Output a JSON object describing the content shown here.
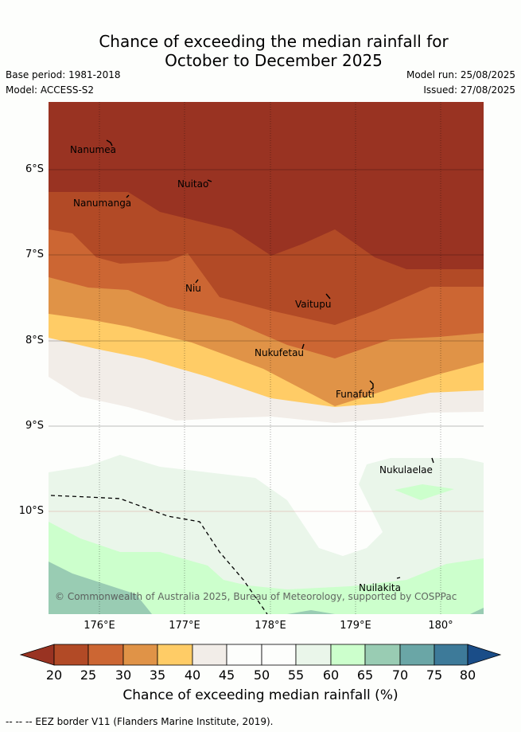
{
  "title": "Chance of exceeding the median rainfall for\nOctober to December 2025",
  "info": {
    "base_period": "Base period: 1981-2018",
    "model": "Model: ACCESS-S2",
    "model_run": "Model run: 25/08/2025",
    "issued": "Issued: 27/08/2025"
  },
  "map": {
    "copyright": "© Commonwealth of Australia 2025, Bureau of Meteorology, supported by COSPPac",
    "lat_labels": [
      "6°S",
      "7°S",
      "8°S",
      "9°S",
      "10°S"
    ],
    "lon_labels": [
      "176°E",
      "177°E",
      "178°E",
      "179°E",
      "180°"
    ],
    "islands": [
      {
        "name": "Nanumea"
      },
      {
        "name": "Nuitao"
      },
      {
        "name": "Nanumanga"
      },
      {
        "name": "Niu"
      },
      {
        "name": "Vaitupu"
      },
      {
        "name": "Nukufetau"
      },
      {
        "name": "Funafuti"
      },
      {
        "name": "Nukulaelae"
      },
      {
        "name": "Nuilakita"
      }
    ]
  },
  "colorbar": {
    "title": "Chance of exceeding median rainfall (%)",
    "ticks": [
      "20",
      "25",
      "30",
      "35",
      "40",
      "45",
      "50",
      "55",
      "60",
      "65",
      "70",
      "75",
      "80"
    ],
    "colors": {
      "lt20": "#993322",
      "20-25": "#b24a26",
      "25-30": "#cc6633",
      "30-35": "#e09347",
      "35-40": "#ffcc66",
      "40-45": "#f2ede8",
      "45-50": "#fdfefc",
      "50-55": "#fdfefc",
      "55-60": "#eaf6ea",
      "60-65": "#ccffcc",
      "65-70": "#99ccb3",
      "70-75": "#6aa6a6",
      "75-80": "#3d7a99",
      "gt80": "#1a4d88"
    }
  },
  "footer": "-- -- -- EEZ border V11 (Flanders Marine Institute, 2019)."
}
